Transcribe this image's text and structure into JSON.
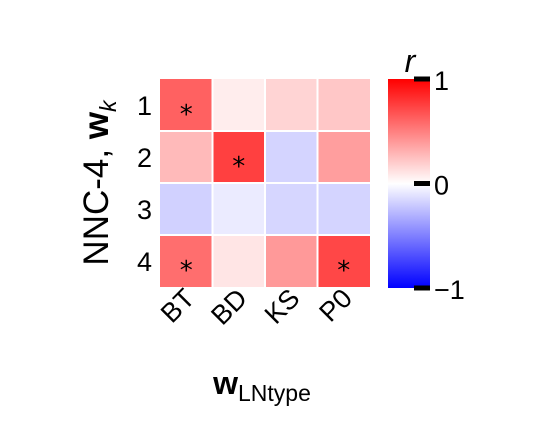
{
  "chart_data": {
    "type": "heatmap",
    "categories_x": [
      "BT",
      "BD",
      "KS",
      "P0"
    ],
    "categories_y": [
      "1",
      "2",
      "3",
      "4"
    ],
    "values": [
      [
        0.62,
        0.07,
        0.17,
        0.22
      ],
      [
        0.27,
        0.75,
        -0.17,
        0.38
      ],
      [
        -0.18,
        -0.08,
        -0.16,
        -0.17
      ],
      [
        0.57,
        0.1,
        0.4,
        0.72
      ]
    ],
    "significant": [
      [
        true,
        false,
        false,
        false
      ],
      [
        false,
        true,
        false,
        false
      ],
      [
        false,
        false,
        false,
        false
      ],
      [
        true,
        false,
        false,
        true
      ]
    ],
    "significance_marker": "*",
    "colormap": {
      "low": "#0000ff",
      "mid": "#ffffff",
      "high": "#ff0000"
    },
    "clim": [
      -1,
      1
    ],
    "colorbar": {
      "label": "r",
      "ticks": [
        1,
        0,
        -1
      ],
      "tick_labels": [
        "1",
        "0",
        "−1"
      ]
    },
    "xlabel": {
      "main": "w",
      "subscript": "LNtype"
    },
    "ylabel": {
      "main": "NNC-4, ",
      "bold": "w",
      "subscript": "k"
    }
  }
}
